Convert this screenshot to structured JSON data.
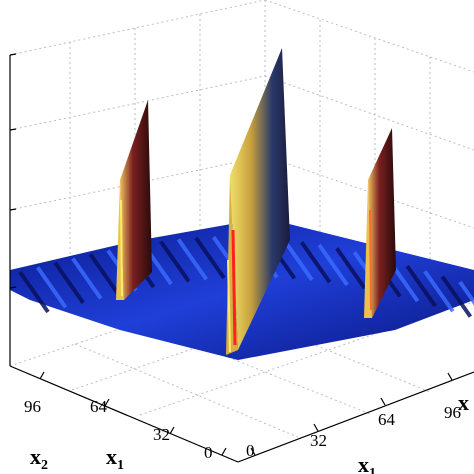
{
  "chart_data": {
    "type": "surface",
    "title": "",
    "xlabel": {
      "main": "x",
      "sub": "1"
    },
    "ylabel": {
      "main": "x",
      "sub": "2"
    },
    "right_axis_label": {
      "main": "x",
      "sub": ""
    },
    "x_ticks": [
      "0",
      "32",
      "64",
      "96"
    ],
    "y_ticks": [
      "96",
      "64",
      "32",
      "0"
    ],
    "z_ticks_count": 4,
    "grid": true,
    "colormap": "jet",
    "peaks": [
      {
        "x": 64,
        "y": 64,
        "height": 1.0
      },
      {
        "x": 64,
        "y": 128,
        "height": 0.6
      },
      {
        "x": 128,
        "y": 64,
        "height": 0.6
      }
    ]
  }
}
